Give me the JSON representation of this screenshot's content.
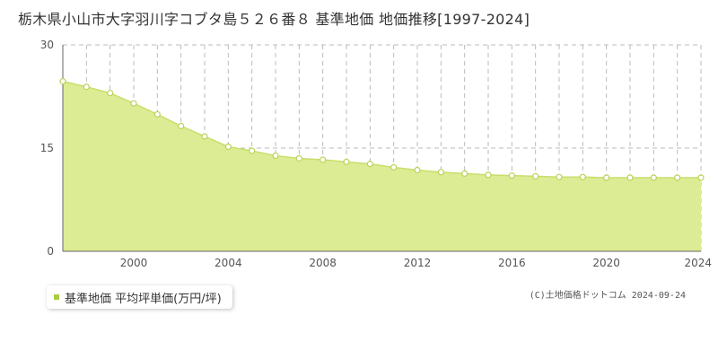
{
  "title": "栃木県小山市大字羽川字コブタ島５２６番８ 基準地価 地価推移[1997-2024]",
  "legend_label": "基準地価 平均坪単価(万円/坪)",
  "copyright": "(C)土地価格ドットコム 2024-09-24",
  "colors": {
    "fill": "#dcec94",
    "line": "#c8de6c",
    "point_stroke": "#b9d35a",
    "legend": "#aacc44",
    "grid": "#bbbbbb"
  },
  "chart_data": {
    "type": "area",
    "x": [
      1997,
      1998,
      1999,
      2000,
      2001,
      2002,
      2003,
      2004,
      2005,
      2006,
      2007,
      2008,
      2009,
      2010,
      2011,
      2012,
      2013,
      2014,
      2015,
      2016,
      2017,
      2018,
      2019,
      2020,
      2021,
      2022,
      2023,
      2024
    ],
    "series": [
      {
        "name": "基準地価 平均坪単価(万円/坪)",
        "values": [
          24.7,
          23.9,
          23.0,
          21.5,
          19.9,
          18.2,
          16.7,
          15.2,
          14.6,
          13.9,
          13.5,
          13.3,
          13.0,
          12.7,
          12.2,
          11.8,
          11.5,
          11.3,
          11.1,
          11.0,
          10.9,
          10.8,
          10.8,
          10.7,
          10.7,
          10.7,
          10.7,
          10.7
        ]
      }
    ],
    "xlim": [
      1997,
      2024
    ],
    "ylim": [
      0,
      30
    ],
    "yticks": [
      0,
      15,
      30
    ],
    "xticks": [
      2000,
      2004,
      2008,
      2012,
      2016,
      2020,
      2024
    ],
    "grid": true
  }
}
